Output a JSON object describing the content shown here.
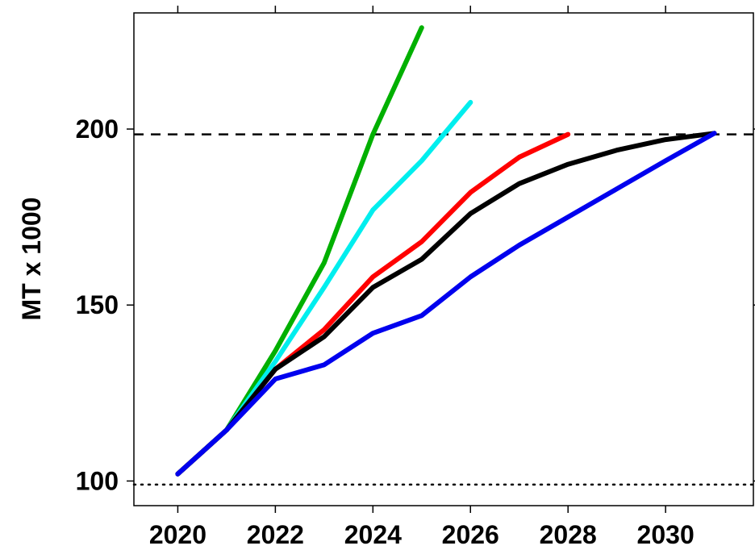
{
  "chart_data": {
    "type": "line",
    "title": "",
    "xlabel": "",
    "ylabel": "MT x 1000",
    "xlim": [
      2019.1,
      2031.8
    ],
    "ylim": [
      93,
      233
    ],
    "x_ticks": [
      2020,
      2022,
      2024,
      2026,
      2028,
      2030
    ],
    "x_tick_labels": [
      "2020",
      "2022",
      "2024",
      "2026",
      "2028",
      "2030"
    ],
    "y_ticks": [
      100,
      150,
      200
    ],
    "y_tick_labels": [
      "100",
      "150",
      "200"
    ],
    "reference_lines": [
      {
        "y": 198.5,
        "style": "dashed"
      },
      {
        "y": 99,
        "style": "dotted"
      }
    ],
    "grid": false,
    "legend": "none",
    "series": [
      {
        "color": "#00b000",
        "points": [
          [
            2020,
            102
          ],
          [
            2021,
            114.5
          ],
          [
            2022,
            137
          ],
          [
            2023,
            162
          ],
          [
            2024,
            198.5
          ],
          [
            2025,
            228.8
          ]
        ]
      },
      {
        "color": "#00eeee",
        "points": [
          [
            2020,
            102
          ],
          [
            2021,
            114.5
          ],
          [
            2022,
            134
          ],
          [
            2023,
            155
          ],
          [
            2024,
            177
          ],
          [
            2025,
            191
          ],
          [
            2026,
            207.6
          ]
        ]
      },
      {
        "color": "#ff0000",
        "points": [
          [
            2020,
            102
          ],
          [
            2021,
            114.5
          ],
          [
            2022,
            131.8
          ],
          [
            2023,
            143
          ],
          [
            2024,
            158
          ],
          [
            2025,
            168
          ],
          [
            2026,
            182
          ],
          [
            2027,
            192
          ],
          [
            2028,
            198.5
          ]
        ]
      },
      {
        "color": "#000000",
        "points": [
          [
            2020,
            102
          ],
          [
            2021,
            114.5
          ],
          [
            2022,
            131.8
          ],
          [
            2023,
            141
          ],
          [
            2024,
            155
          ],
          [
            2025,
            163
          ],
          [
            2026,
            176
          ],
          [
            2027,
            184.5
          ],
          [
            2028,
            190
          ],
          [
            2029,
            194
          ],
          [
            2030,
            197
          ],
          [
            2031,
            198.8
          ]
        ]
      },
      {
        "color": "#0000ee",
        "points": [
          [
            2020,
            102
          ],
          [
            2021,
            114.5
          ],
          [
            2022,
            129
          ],
          [
            2023,
            133
          ],
          [
            2024,
            142
          ],
          [
            2025,
            147
          ],
          [
            2026,
            158
          ],
          [
            2027,
            167
          ],
          [
            2028,
            175
          ],
          [
            2029,
            183
          ],
          [
            2030,
            191
          ],
          [
            2031,
            198.8
          ]
        ]
      }
    ]
  }
}
